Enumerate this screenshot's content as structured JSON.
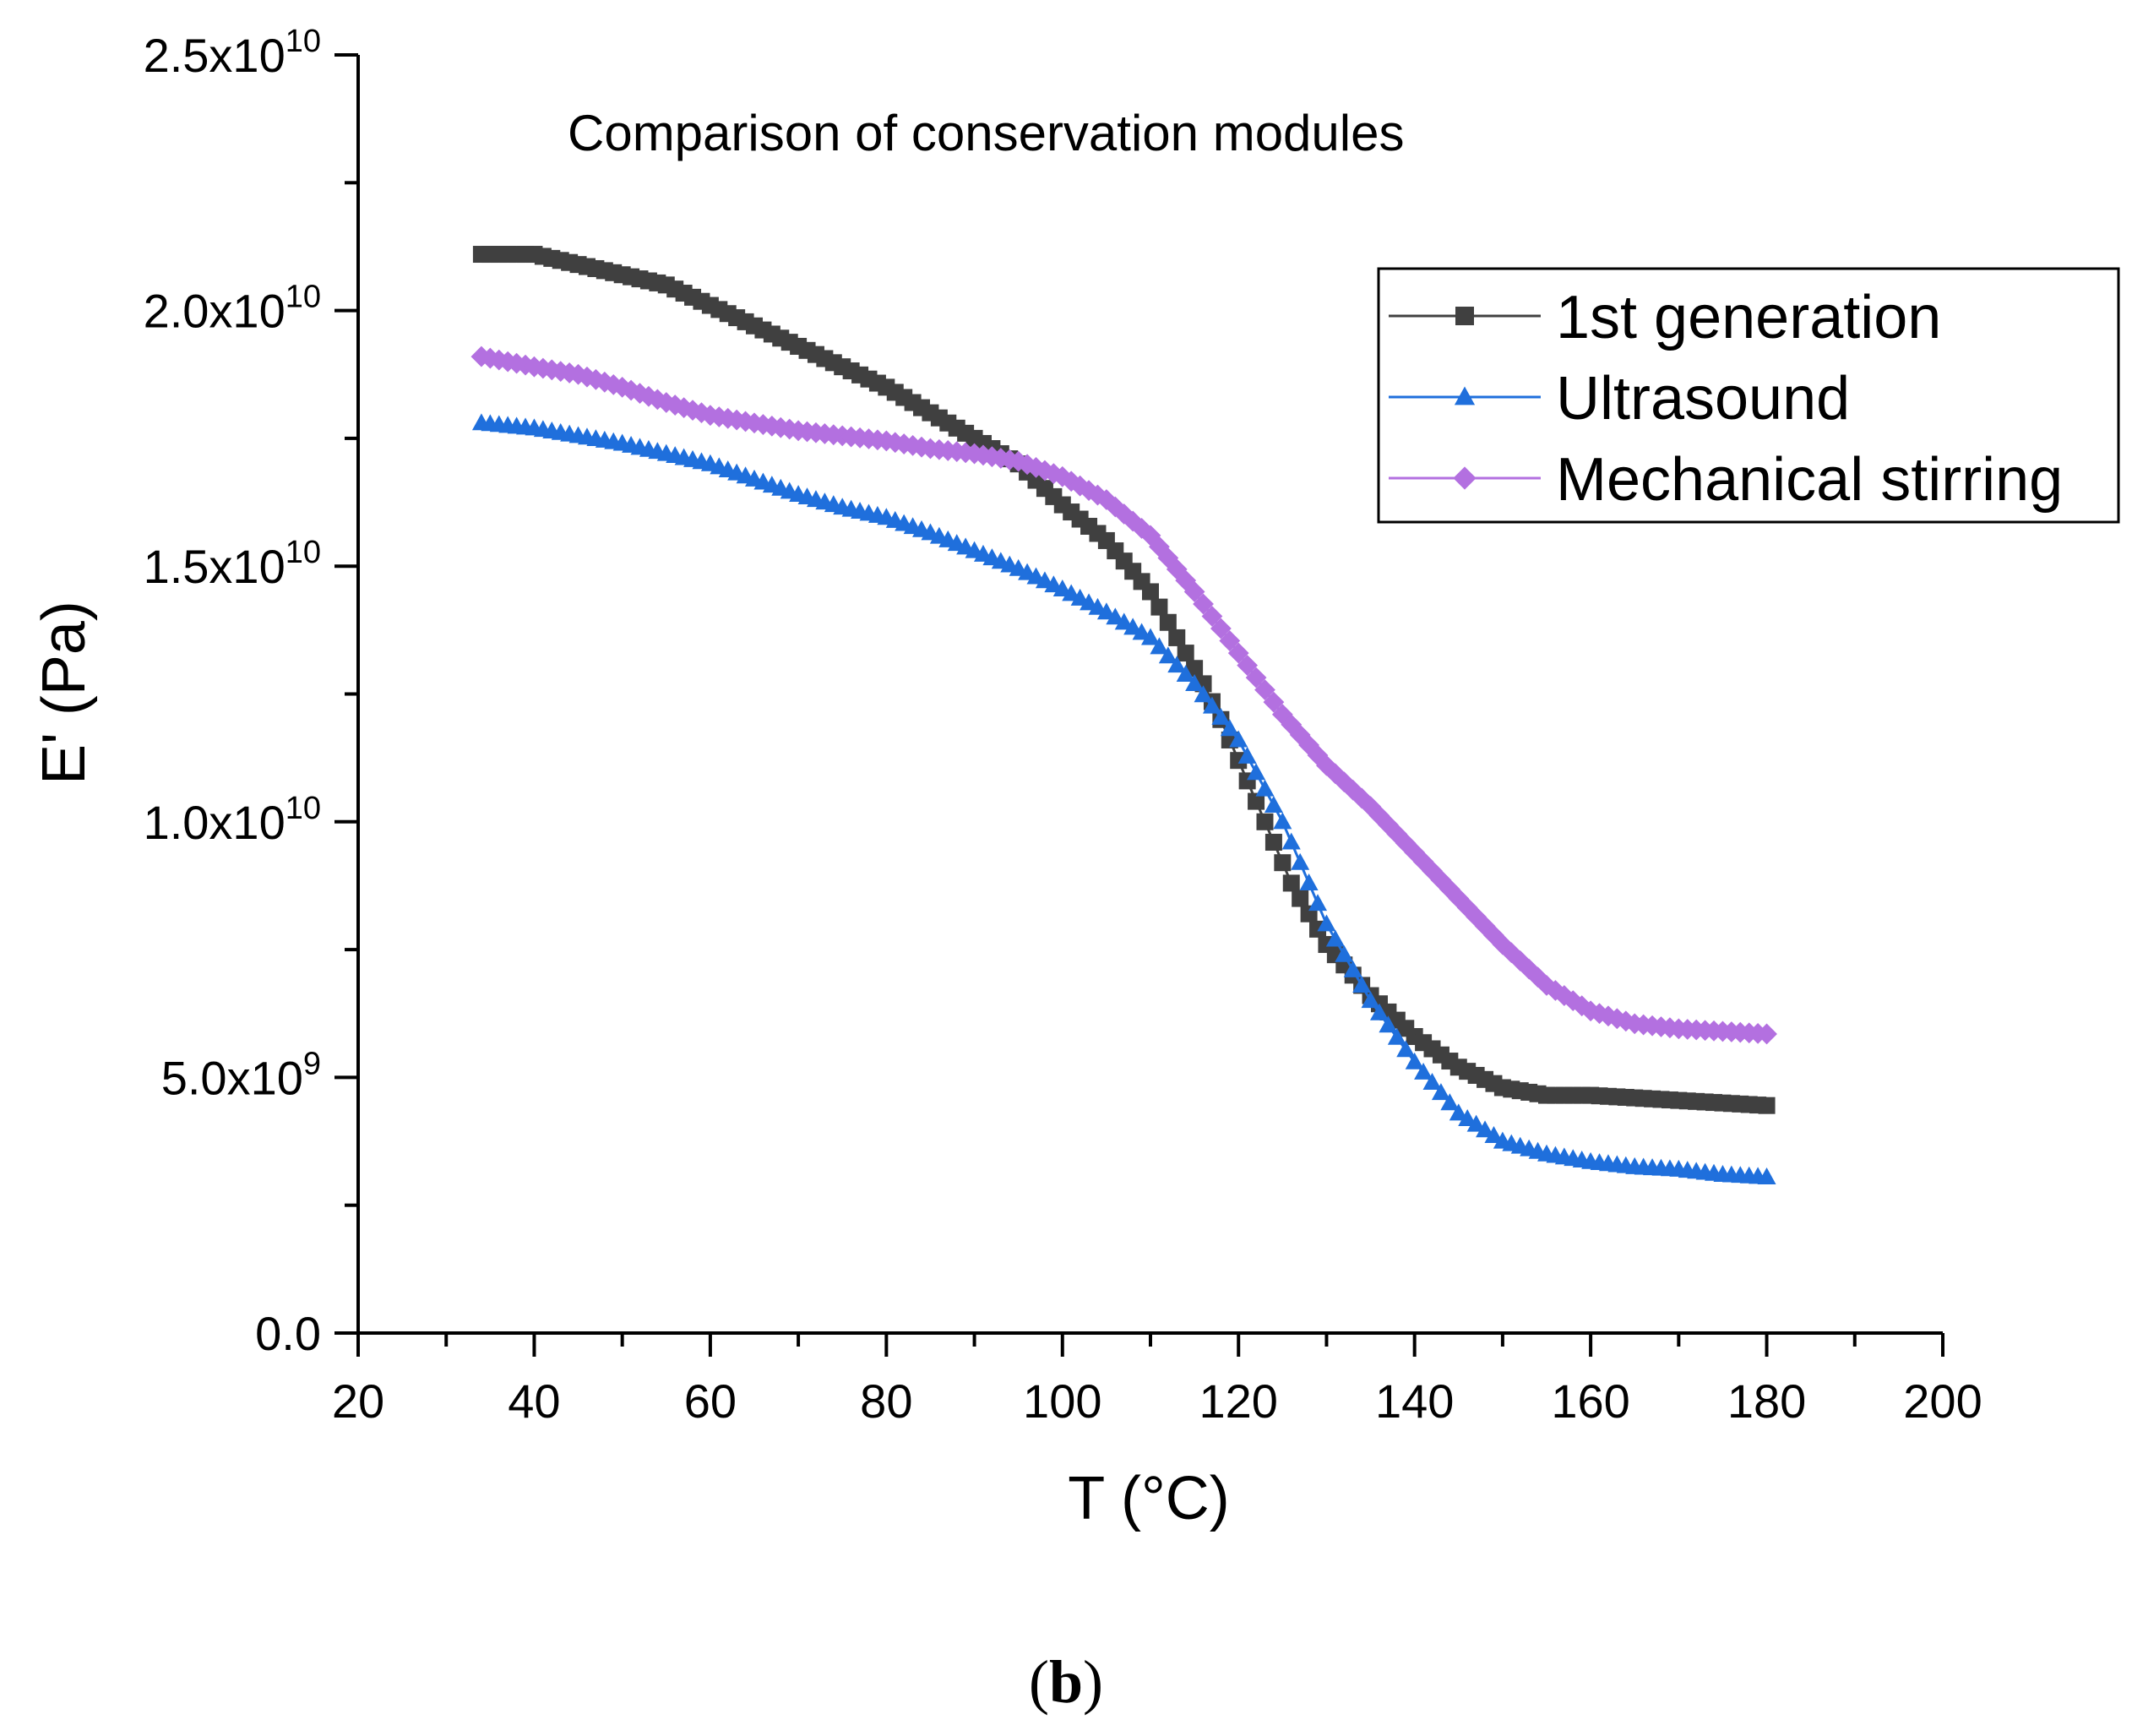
{
  "chart_data": {
    "type": "line",
    "title": "Comparison of conservation modules",
    "panel_label": {
      "open": "(",
      "letter": "b",
      "close": ")"
    },
    "xlabel": "T (°C)",
    "ylabel": "E' (Pa)",
    "xlim": [
      20,
      200
    ],
    "ylim": [
      0,
      25000000000
    ],
    "x_ticks": [
      20,
      40,
      60,
      80,
      100,
      120,
      140,
      160,
      180,
      200
    ],
    "y_ticks": [
      {
        "value": 0,
        "mantissa": "0.0",
        "exp": ""
      },
      {
        "value": 5000000000,
        "mantissa": "5.0x10",
        "exp": "9"
      },
      {
        "value": 10000000000,
        "mantissa": "1.0x10",
        "exp": "10"
      },
      {
        "value": 15000000000,
        "mantissa": "1.5x10",
        "exp": "10"
      },
      {
        "value": 20000000000,
        "mantissa": "2.0x10",
        "exp": "10"
      },
      {
        "value": 25000000000,
        "mantissa": "2.5x10",
        "exp": "10"
      }
    ],
    "grid": false,
    "legend_position": "top-right",
    "series": [
      {
        "name": "1st generation",
        "color": "#404040",
        "marker": "square",
        "x": [
          34,
          40,
          45,
          50,
          55,
          60,
          65,
          70,
          75,
          80,
          85,
          90,
          95,
          100,
          105,
          110,
          113,
          116,
          118,
          120,
          123,
          126,
          130,
          135,
          140,
          145,
          150,
          155,
          160,
          165,
          170,
          175,
          180
        ],
        "y": [
          21100000000,
          21100000000,
          20900000000,
          20700000000,
          20500000000,
          20100000000,
          19700000000,
          19300000000,
          18900000000,
          18500000000,
          18000000000,
          17500000000,
          17000000000,
          16200000000,
          15500000000,
          14500000000,
          13600000000,
          12700000000,
          12000000000,
          11200000000,
          10000000000,
          8800000000,
          7600000000,
          6600000000,
          5800000000,
          5200000000,
          4800000000,
          4650000000,
          4650000000,
          4600000000,
          4550000000,
          4500000000,
          4450000000
        ]
      },
      {
        "name": "Ultrasound",
        "color": "#1f6fdc",
        "marker": "triangle",
        "x": [
          34,
          40,
          45,
          50,
          55,
          60,
          65,
          70,
          75,
          80,
          85,
          90,
          95,
          100,
          105,
          110,
          115,
          120,
          125,
          130,
          135,
          140,
          145,
          150,
          155,
          160,
          165,
          170,
          175,
          180
        ],
        "y": [
          17800000000,
          17700000000,
          17550000000,
          17400000000,
          17200000000,
          17000000000,
          16700000000,
          16400000000,
          16150000000,
          15950000000,
          15650000000,
          15300000000,
          14950000000,
          14550000000,
          14100000000,
          13600000000,
          12700000000,
          11600000000,
          10000000000,
          8000000000,
          6500000000,
          5300000000,
          4300000000,
          3750000000,
          3500000000,
          3350000000,
          3250000000,
          3200000000,
          3100000000,
          3050000000
        ]
      },
      {
        "name": "Mechanical stirring",
        "color": "#b370e0",
        "marker": "diamond",
        "x": [
          34,
          40,
          45,
          50,
          55,
          60,
          65,
          70,
          75,
          80,
          85,
          90,
          95,
          100,
          105,
          110,
          115,
          120,
          125,
          130,
          135,
          140,
          145,
          150,
          155,
          160,
          165,
          170,
          175,
          180
        ],
        "y": [
          19100000000,
          18900000000,
          18750000000,
          18500000000,
          18200000000,
          17950000000,
          17800000000,
          17650000000,
          17550000000,
          17450000000,
          17300000000,
          17200000000,
          17050000000,
          16750000000,
          16300000000,
          15600000000,
          14500000000,
          13300000000,
          12100000000,
          11100000000,
          10300000000,
          9400000000,
          8500000000,
          7600000000,
          6800000000,
          6300000000,
          6050000000,
          5950000000,
          5900000000,
          5850000000
        ]
      }
    ]
  }
}
